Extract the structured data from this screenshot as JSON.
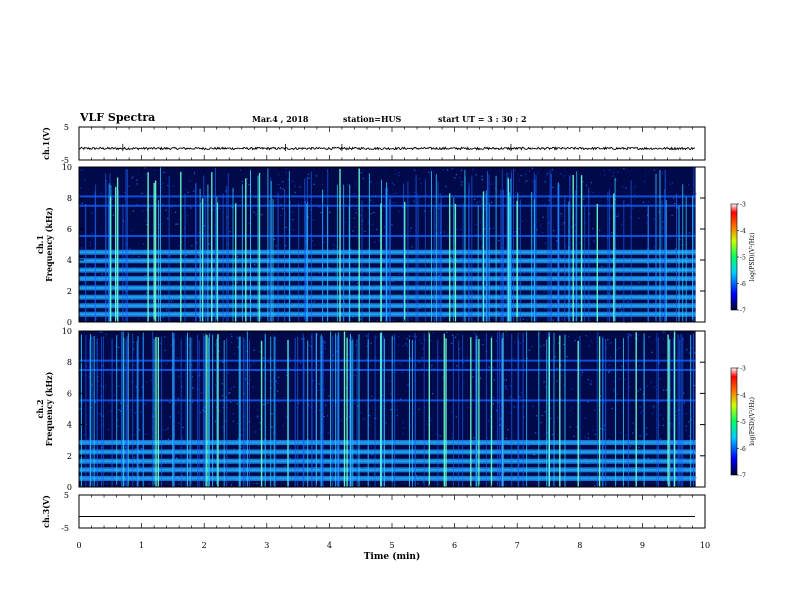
{
  "header": {
    "title": "VLF Spectra",
    "date": "Mar.4 , 2018",
    "station": "station=HUS",
    "start_ut": "start UT = 3 : 30 : 2"
  },
  "chart_data": [
    {
      "type": "line",
      "name": "ch1-waveform",
      "ylabel": "ch.1(V)",
      "ylim": [
        -5,
        5
      ],
      "yticks": [
        "5",
        "-5"
      ],
      "xlim": [
        0,
        10
      ],
      "baseline": -1.5
    },
    {
      "type": "heatmap",
      "name": "ch1-spectrogram",
      "ylabel": "ch.1\nFrequency (kHz)",
      "ylim": [
        0,
        10
      ],
      "yticks": [
        "0",
        "2",
        "4",
        "6",
        "8",
        "10"
      ],
      "xlim": [
        0,
        10
      ],
      "data_end_min": 9.85,
      "bands_khz": [
        0.5,
        1.05,
        1.6,
        2.2,
        2.8,
        3.35,
        3.95,
        4.5
      ],
      "colorbar": {
        "label": "log(PSD)(V²/Hz)",
        "min": -7,
        "max": -3,
        "ticks": [
          "-3",
          "-4",
          "-5",
          "-6",
          "-7"
        ]
      }
    },
    {
      "type": "heatmap",
      "name": "ch2-spectrogram",
      "ylabel": "ch.2\nFrequency (kHz)",
      "ylim": [
        0,
        10
      ],
      "yticks": [
        "0",
        "2",
        "4",
        "6",
        "8",
        "10"
      ],
      "xlim": [
        0,
        10
      ],
      "data_end_min": 9.85,
      "bands_khz": [
        0.55,
        1.1,
        1.65,
        2.25,
        2.85
      ],
      "colorbar": {
        "label": "log(PSD)(V²/Hz)",
        "min": -7,
        "max": -3,
        "ticks": [
          "-3",
          "-4",
          "-5",
          "-6",
          "-7"
        ]
      }
    },
    {
      "type": "line",
      "name": "ch3-waveform",
      "ylabel": "ch.3(V)",
      "ylim": [
        -5,
        5
      ],
      "yticks": [
        "5",
        "-5"
      ],
      "xlim": [
        0,
        10
      ],
      "baseline": -1.5
    }
  ],
  "xaxis": {
    "label": "Time (min)",
    "ticks": [
      "0",
      "1",
      "2",
      "3",
      "4",
      "5",
      "6",
      "7",
      "8",
      "9",
      "10"
    ]
  },
  "colors": {
    "bg": "#000a4a",
    "band": "#1aa4ff",
    "band_strong": "#33ffaa",
    "streak": "#66ffcc",
    "line": "#000000"
  }
}
